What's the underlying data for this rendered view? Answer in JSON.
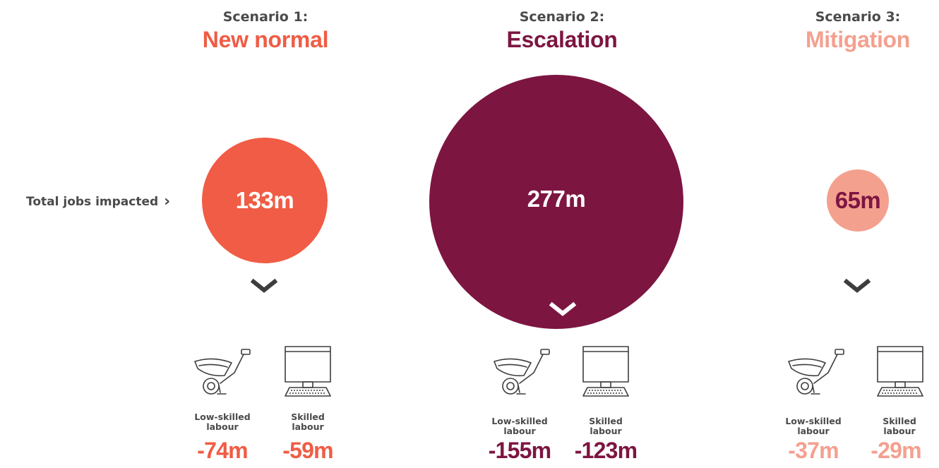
{
  "row_label": "Total jobs impacted",
  "row_arrow": "›",
  "colors": {
    "new_normal": "#f05c45",
    "escalation": "#7d1541",
    "mitigation": "#f4a08f",
    "text": "#4a4a4a"
  },
  "scenarios": [
    {
      "label": "Scenario 1:",
      "name": "New normal",
      "total": "133m",
      "low_skilled_label_1": "Low-skilled",
      "low_skilled_label_2": "labour",
      "low_skilled_value": "-74m",
      "skilled_label_1": "Skilled",
      "skilled_label_2": "labour",
      "skilled_value": "-59m"
    },
    {
      "label": "Scenario 2:",
      "name": "Escalation",
      "total": "277m",
      "low_skilled_label_1": "Low-skilled",
      "low_skilled_label_2": "labour",
      "low_skilled_value": "-155m",
      "skilled_label_1": "Skilled",
      "skilled_label_2": "labour",
      "skilled_value": "-123m"
    },
    {
      "label": "Scenario 3:",
      "name": "Mitigation",
      "total": "65m",
      "low_skilled_label_1": "Low-skilled",
      "low_skilled_label_2": "labour",
      "low_skilled_value": "-37m",
      "skilled_label_1": "Skilled",
      "skilled_label_2": "labour",
      "skilled_value": "-29m"
    }
  ],
  "icons": {
    "low_skilled": "wheelbarrow-icon",
    "skilled": "computer-monitor-icon",
    "down": "chevron-down-icon"
  }
}
